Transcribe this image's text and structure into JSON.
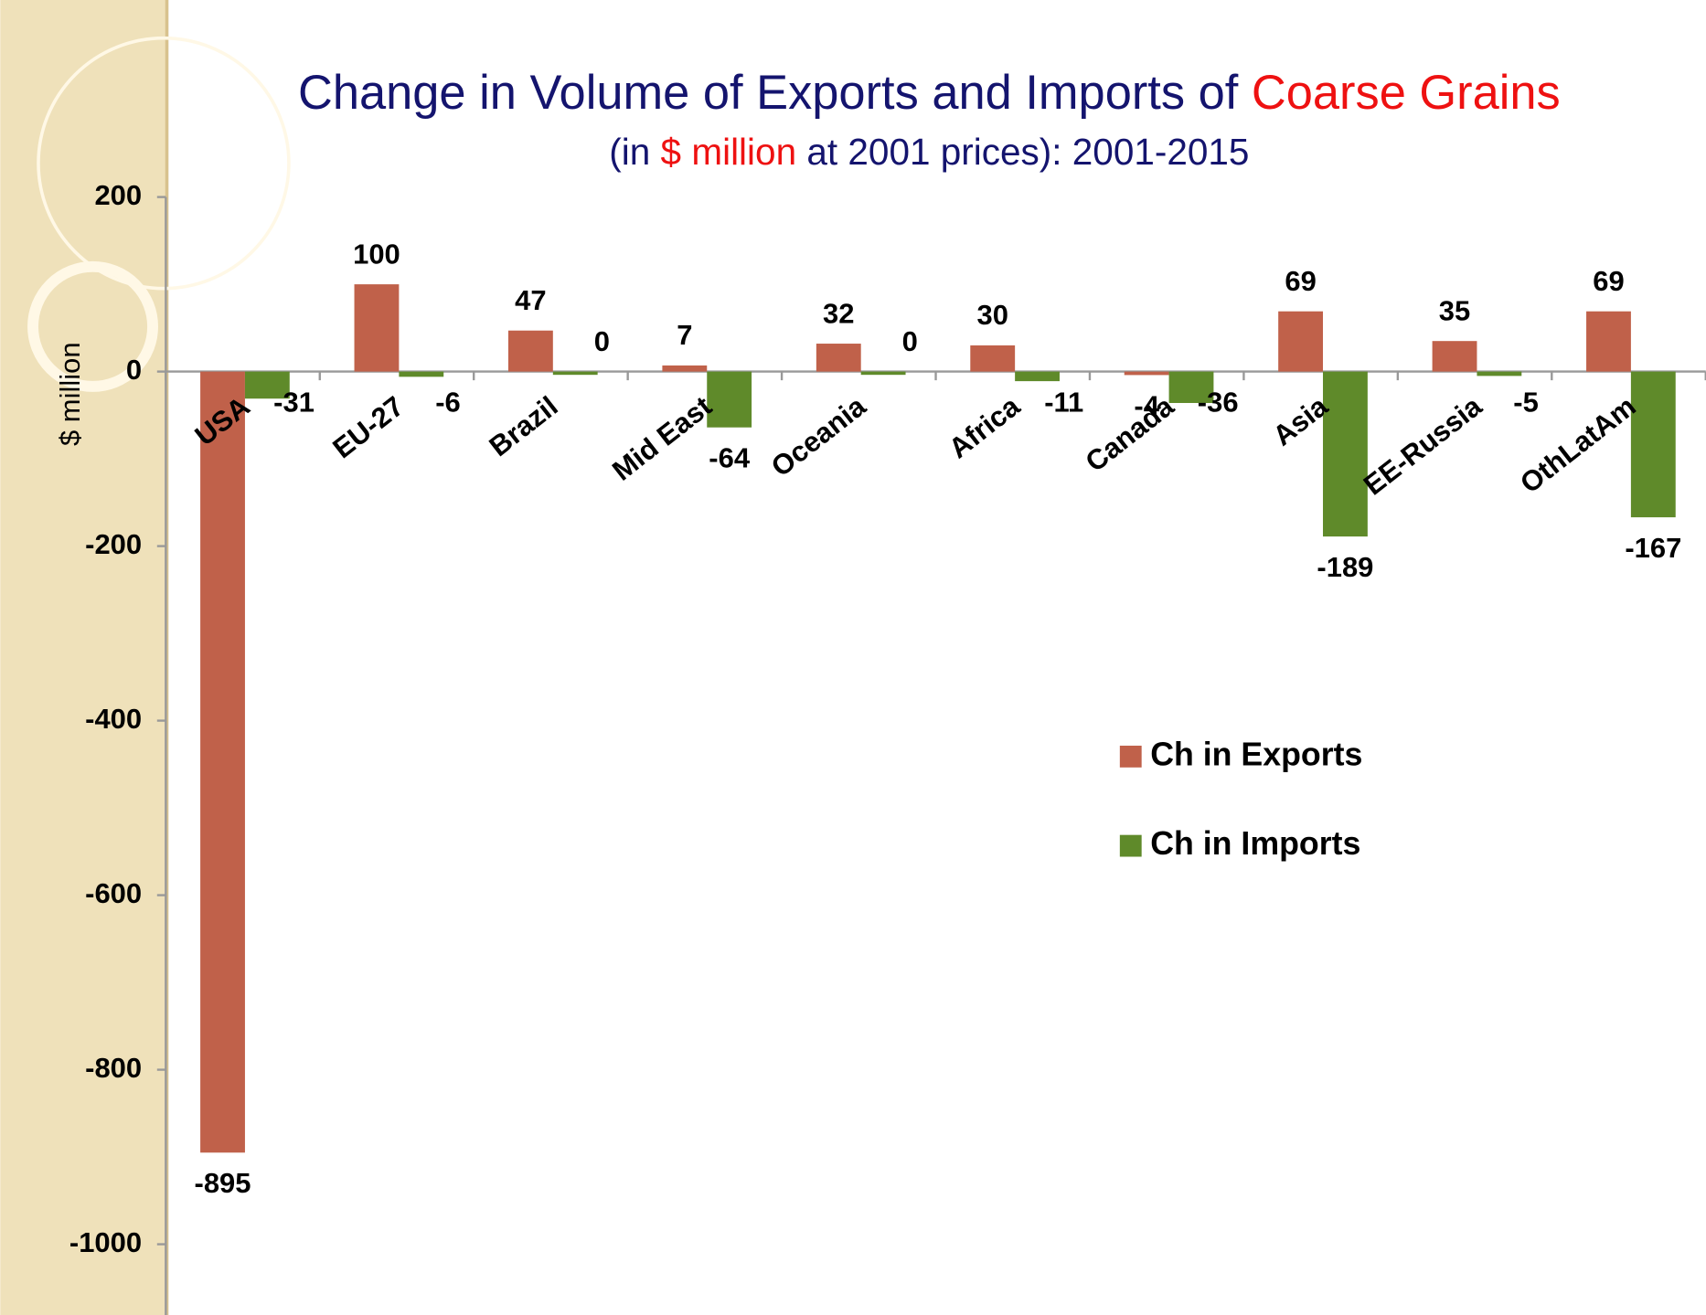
{
  "chart_data": {
    "type": "bar",
    "title": [
      "Change in Volume of Exports and Imports of ",
      "Coarse Grains"
    ],
    "subtitle": [
      "(in ",
      "$ million",
      " at 2001 prices): 2001-2015"
    ],
    "y_label": "$ million",
    "categories": [
      "USA",
      "EU-27",
      "Brazil",
      "Mid East",
      "Oceania",
      "Africa",
      "Canada",
      "Asia",
      "EE-Russia",
      "OthLatAm"
    ],
    "series": [
      {
        "name": "Ch in Exports",
        "color": "#c0614a",
        "values": [
          -895,
          100,
          47,
          7,
          32,
          30,
          -4,
          69,
          35,
          69
        ]
      },
      {
        "name": "Ch in Imports",
        "color": "#5f8a2a",
        "values": [
          -31,
          -6,
          0,
          -64,
          0,
          -11,
          -36,
          -189,
          -5,
          -167
        ]
      }
    ],
    "ylim": [
      -1000,
      200
    ],
    "yticks": [
      200,
      0,
      -200,
      -400,
      -600,
      -800,
      -1000
    ]
  }
}
